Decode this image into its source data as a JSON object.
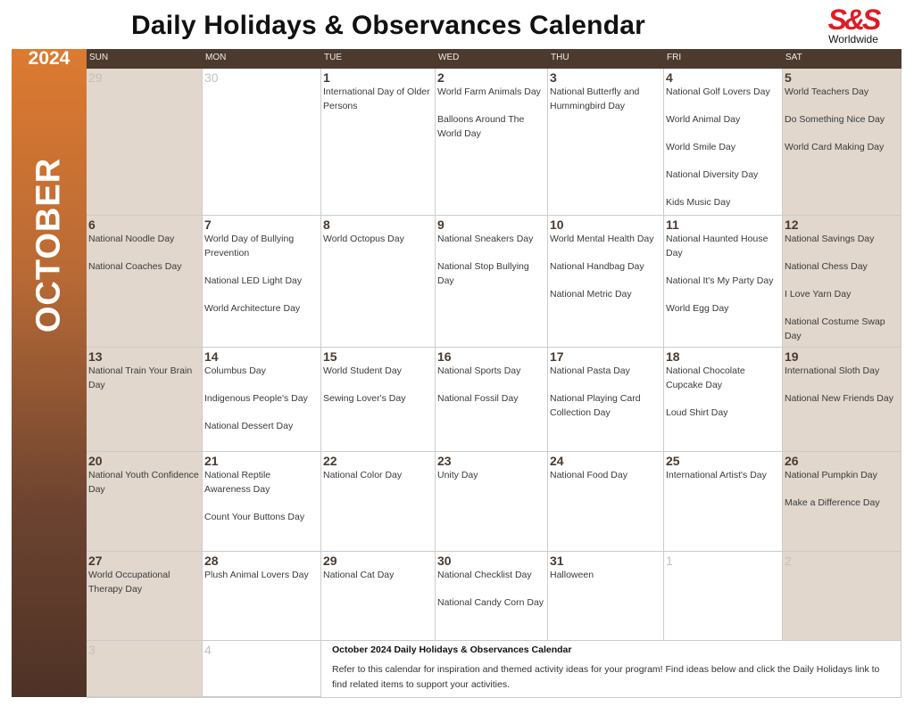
{
  "title": "Daily Holidays & Observances Calendar",
  "logo": {
    "mark": "S&S",
    "sub": "Worldwide"
  },
  "year": "2024",
  "month": "OCTOBER",
  "weekdays": [
    "SUN",
    "MON",
    "TUE",
    "WED",
    "THU",
    "FRI",
    "SAT"
  ],
  "colors": {
    "header": "#4d3a2e",
    "weekend": "#e1d7cd",
    "accent": "#dd7a30",
    "logo": "#e01b24"
  },
  "weeks": [
    [
      {
        "day": "29",
        "muted": true,
        "events": []
      },
      {
        "day": "30",
        "muted": true,
        "events": []
      },
      {
        "day": "1",
        "events": [
          "International Day of Older Persons"
        ]
      },
      {
        "day": "2",
        "events": [
          "World Farm Animals Day",
          "Balloons Around The World Day"
        ]
      },
      {
        "day": "3",
        "events": [
          "National Butterfly and Hummingbird Day"
        ]
      },
      {
        "day": "4",
        "events": [
          "National Golf Lovers Day",
          "World Animal Day",
          "World Smile Day",
          "National Diversity Day",
          "Kids Music Day"
        ]
      },
      {
        "day": "5",
        "events": [
          "World Teachers Day",
          "Do Something Nice Day",
          "World Card Making Day"
        ]
      }
    ],
    [
      {
        "day": "6",
        "events": [
          "National Noodle Day",
          "National Coaches Day"
        ]
      },
      {
        "day": "7",
        "events": [
          "World Day of Bullying Prevention",
          "National LED Light Day",
          "World Architecture Day"
        ]
      },
      {
        "day": "8",
        "events": [
          "World Octopus Day"
        ]
      },
      {
        "day": "9",
        "events": [
          "National Sneakers Day",
          "National Stop Bullying Day"
        ]
      },
      {
        "day": "10",
        "events": [
          "World Mental Health Day",
          "National Handbag Day",
          "National Metric Day"
        ]
      },
      {
        "day": "11",
        "events": [
          "National Haunted House Day",
          "National It's My Party Day",
          "World Egg Day"
        ]
      },
      {
        "day": "12",
        "events": [
          "National Savings Day",
          "National Chess Day",
          "I Love Yarn Day",
          "National Costume Swap Day"
        ]
      }
    ],
    [
      {
        "day": "13",
        "events": [
          "National Train Your Brain Day"
        ]
      },
      {
        "day": "14",
        "events": [
          "Columbus Day",
          "Indigenous People's Day",
          "National Dessert Day"
        ]
      },
      {
        "day": "15",
        "events": [
          "World Student Day",
          "Sewing Lover's Day"
        ]
      },
      {
        "day": "16",
        "events": [
          "National Sports Day",
          "National Fossil Day"
        ]
      },
      {
        "day": "17",
        "events": [
          "National Pasta Day",
          "National Playing Card Collection Day"
        ]
      },
      {
        "day": "18",
        "events": [
          "National Chocolate Cupcake Day",
          "Loud Shirt Day"
        ]
      },
      {
        "day": "19",
        "events": [
          "International Sloth Day",
          "National New Friends Day"
        ]
      }
    ],
    [
      {
        "day": "20",
        "events": [
          "National Youth Confidence Day"
        ]
      },
      {
        "day": "21",
        "events": [
          "National Reptile Awareness Day",
          "Count Your Buttons Day"
        ]
      },
      {
        "day": "22",
        "events": [
          "National Color Day"
        ]
      },
      {
        "day": "23",
        "events": [
          "Unity Day"
        ]
      },
      {
        "day": "24",
        "events": [
          "National Food Day"
        ]
      },
      {
        "day": "25",
        "events": [
          "International Artist's Day"
        ]
      },
      {
        "day": "26",
        "events": [
          "National Pumpkin Day",
          "Make a Difference Day"
        ]
      }
    ],
    [
      {
        "day": "27",
        "events": [
          "World Occupational Therapy Day"
        ]
      },
      {
        "day": "28",
        "events": [
          "Plush Animal Lovers Day"
        ]
      },
      {
        "day": "29",
        "events": [
          "National Cat Day"
        ]
      },
      {
        "day": "30",
        "events": [
          "National Checklist Day",
          "National Candy Corn Day"
        ]
      },
      {
        "day": "31",
        "events": [
          "Halloween"
        ]
      },
      {
        "day": "1",
        "muted": true,
        "events": []
      },
      {
        "day": "2",
        "muted": true,
        "events": []
      }
    ],
    [
      {
        "day": "3",
        "muted": true,
        "events": []
      },
      {
        "day": "4",
        "muted": true,
        "events": []
      }
    ]
  ],
  "notes": {
    "title": "October 2024 Daily Holidays & Observances Calendar",
    "body": "Refer to this calendar for inspiration and themed activity ideas for your program! Find ideas below and click the Daily Holidays link to find related items to support your activities."
  }
}
